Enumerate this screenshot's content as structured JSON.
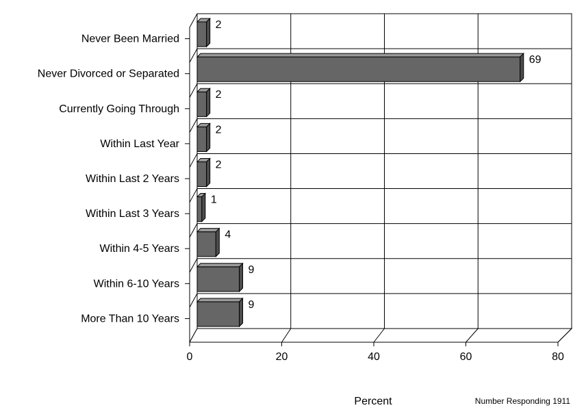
{
  "chart_data": {
    "type": "bar",
    "orientation": "horizontal",
    "style": "3d",
    "categories": [
      "Never Been Married",
      "Never Divorced or Separated",
      "Currently Going Through",
      "Within Last Year",
      "Within Last 2 Years",
      "Within Last 3 Years",
      "Within 4-5 Years",
      "Within 6-10 Years",
      "More Than 10 Years"
    ],
    "values": [
      2,
      69,
      2,
      2,
      2,
      1,
      4,
      9,
      9
    ],
    "data_labels": [
      "2",
      "69",
      "2",
      "2",
      "2",
      "1",
      "4",
      "9",
      "9"
    ],
    "xlabel": "Percent",
    "ylabel": "",
    "title": "",
    "xlim": [
      0,
      80
    ],
    "xticks": [
      0,
      20,
      40,
      60,
      80
    ],
    "xtick_labels": [
      "0",
      "20",
      "40",
      "60",
      "80"
    ],
    "grid": true,
    "legend": "none",
    "bar_color": "#666666",
    "bar_side_color": "#4d4d4d",
    "bar_top_color": "#999999"
  },
  "footnote": "Number Responding 1911"
}
